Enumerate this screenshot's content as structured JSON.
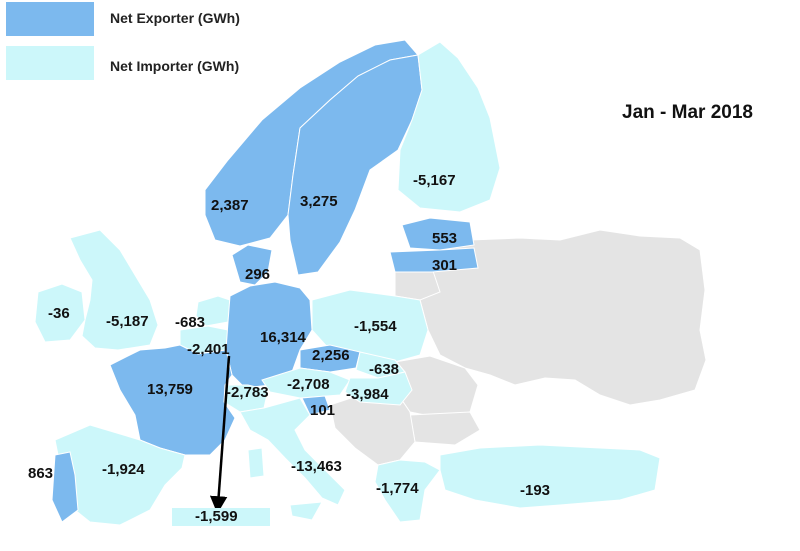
{
  "title": "Jan - Mar 2018",
  "legend": {
    "exporter": {
      "label": "Net Exporter (GWh)",
      "color": "#7cb9ee"
    },
    "importer": {
      "label": "Net Importer (GWh)",
      "color": "#ccf7fa"
    }
  },
  "colors": {
    "other": "#e4e4e4",
    "border": "#ffffff"
  },
  "countries": {
    "norway": {
      "value": "2,387",
      "status": "exporter"
    },
    "sweden": {
      "value": "3,275",
      "status": "exporter"
    },
    "finland": {
      "value": "-5,167",
      "status": "importer"
    },
    "estonia": {
      "value": "553",
      "status": "exporter"
    },
    "latvia": {
      "value": "301",
      "status": "exporter"
    },
    "denmark": {
      "value": "296",
      "status": "exporter"
    },
    "ireland": {
      "value": "-36",
      "status": "importer"
    },
    "uk": {
      "value": "-5,187",
      "status": "importer"
    },
    "netherlands": {
      "value": "-683",
      "status": "importer"
    },
    "belgium": {
      "value": "-2,401",
      "status": "importer"
    },
    "germany": {
      "value": "16,314",
      "status": "exporter"
    },
    "poland": {
      "value": "-1,554",
      "status": "importer"
    },
    "czechia": {
      "value": "2,256",
      "status": "exporter"
    },
    "slovakia": {
      "value": "-638",
      "status": "importer"
    },
    "france": {
      "value": "13,759",
      "status": "exporter"
    },
    "switzerland": {
      "value": "-2,783",
      "status": "importer"
    },
    "austria": {
      "value": "-2,708",
      "status": "importer"
    },
    "hungary": {
      "value": "-3,984",
      "status": "importer"
    },
    "slovenia": {
      "value": "101",
      "status": "exporter"
    },
    "portugal": {
      "value": "863",
      "status": "exporter"
    },
    "spain": {
      "value": "-1,924",
      "status": "importer"
    },
    "italy": {
      "value": "-13,463",
      "status": "importer"
    },
    "greece": {
      "value": "-1,774",
      "status": "importer"
    },
    "turkey": {
      "value": "-193",
      "status": "importer"
    },
    "luxembourg": {
      "value": "-1,599",
      "status": "importer"
    }
  }
}
